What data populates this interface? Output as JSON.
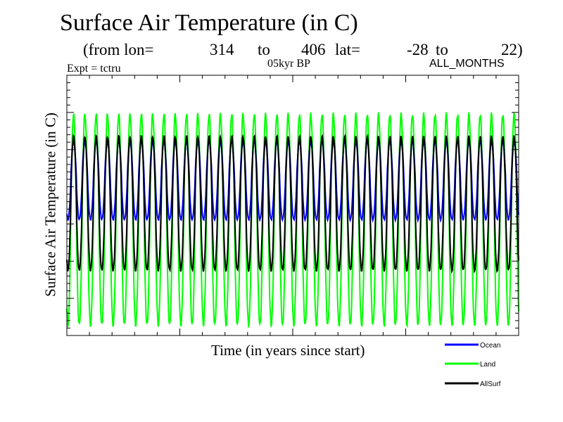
{
  "chart_data": {
    "type": "line",
    "title": "Surface Air Temperature (in C)",
    "subtitle": {
      "prefix": "(from lon=",
      "lon_start": "314",
      "to1": "to",
      "lon_end": "406",
      "lat_label": "lat=",
      "lat_start": "-28",
      "to2": "to",
      "lat_end": "22)"
    },
    "experiment": "Expt = tctru",
    "period": "05kyr BP",
    "months": "ALL_MONTHS",
    "xlabel": "Time (in years since start)",
    "ylabel": "Surface Air Temperature (in C)",
    "cycles": 40,
    "ylim": [
      0,
      1
    ],
    "series": [
      {
        "name": "Ocean",
        "color": "#0000ff",
        "min": 0.445,
        "max": 0.745
      },
      {
        "name": "Land",
        "color": "#00ff00",
        "min": 0.04,
        "max": 0.85
      },
      {
        "name": "AllSurf",
        "color": "#000000",
        "min": 0.25,
        "max": 0.765
      }
    ]
  }
}
